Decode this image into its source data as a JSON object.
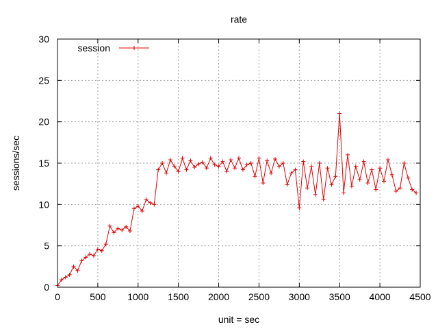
{
  "chart_data": {
    "type": "line",
    "title": "rate",
    "xlabel": "unit = sec",
    "ylabel": "sessions/sec",
    "xlim": [
      0,
      4500
    ],
    "ylim": [
      0,
      30
    ],
    "xticks": [
      0,
      500,
      1000,
      1500,
      2000,
      2500,
      3000,
      3500,
      4000,
      4500
    ],
    "yticks": [
      0,
      5,
      10,
      15,
      20,
      25,
      30
    ],
    "grid": true,
    "legend": "top-left",
    "series_color": "#e00000",
    "series": [
      {
        "name": "session",
        "x": [
          0,
          50,
          100,
          150,
          200,
          250,
          300,
          350,
          400,
          450,
          500,
          550,
          600,
          650,
          700,
          750,
          800,
          850,
          900,
          950,
          1000,
          1050,
          1100,
          1150,
          1200,
          1250,
          1300,
          1350,
          1400,
          1450,
          1500,
          1550,
          1600,
          1650,
          1700,
          1750,
          1800,
          1850,
          1900,
          1950,
          2000,
          2050,
          2100,
          2150,
          2200,
          2250,
          2300,
          2350,
          2400,
          2450,
          2500,
          2550,
          2600,
          2650,
          2700,
          2750,
          2800,
          2850,
          2900,
          2950,
          3000,
          3050,
          3100,
          3150,
          3200,
          3250,
          3300,
          3350,
          3400,
          3450,
          3500,
          3550,
          3600,
          3650,
          3700,
          3750,
          3800,
          3850,
          3900,
          3950,
          4000,
          4050,
          4100,
          4150,
          4200,
          4250,
          4300,
          4350,
          4400,
          4450
        ],
        "y": [
          0.2,
          0.9,
          1.2,
          1.5,
          2.5,
          2.0,
          3.2,
          3.6,
          4.0,
          3.8,
          4.6,
          4.4,
          5.2,
          7.4,
          6.6,
          7.1,
          6.9,
          7.3,
          6.8,
          9.5,
          9.8,
          9.2,
          10.6,
          10.2,
          10.0,
          14.2,
          15.0,
          13.8,
          15.4,
          14.6,
          14.0,
          15.6,
          14.2,
          15.3,
          14.5,
          14.9,
          15.1,
          14.4,
          15.6,
          14.8,
          14.6,
          15.2,
          14.0,
          15.4,
          14.4,
          15.6,
          14.2,
          14.8,
          15.0,
          13.4,
          15.6,
          12.6,
          15.3,
          13.8,
          15.5,
          14.6,
          15.0,
          12.4,
          13.8,
          14.2,
          9.6,
          15.2,
          12.0,
          14.6,
          11.2,
          15.0,
          10.6,
          14.4,
          12.4,
          13.4,
          21.0,
          11.4,
          16.0,
          12.2,
          14.6,
          13.0,
          15.2,
          12.6,
          14.2,
          11.8,
          14.4,
          12.8,
          15.4,
          13.6,
          11.6,
          12.0,
          15.0,
          13.2,
          11.8,
          11.4
        ]
      }
    ]
  }
}
